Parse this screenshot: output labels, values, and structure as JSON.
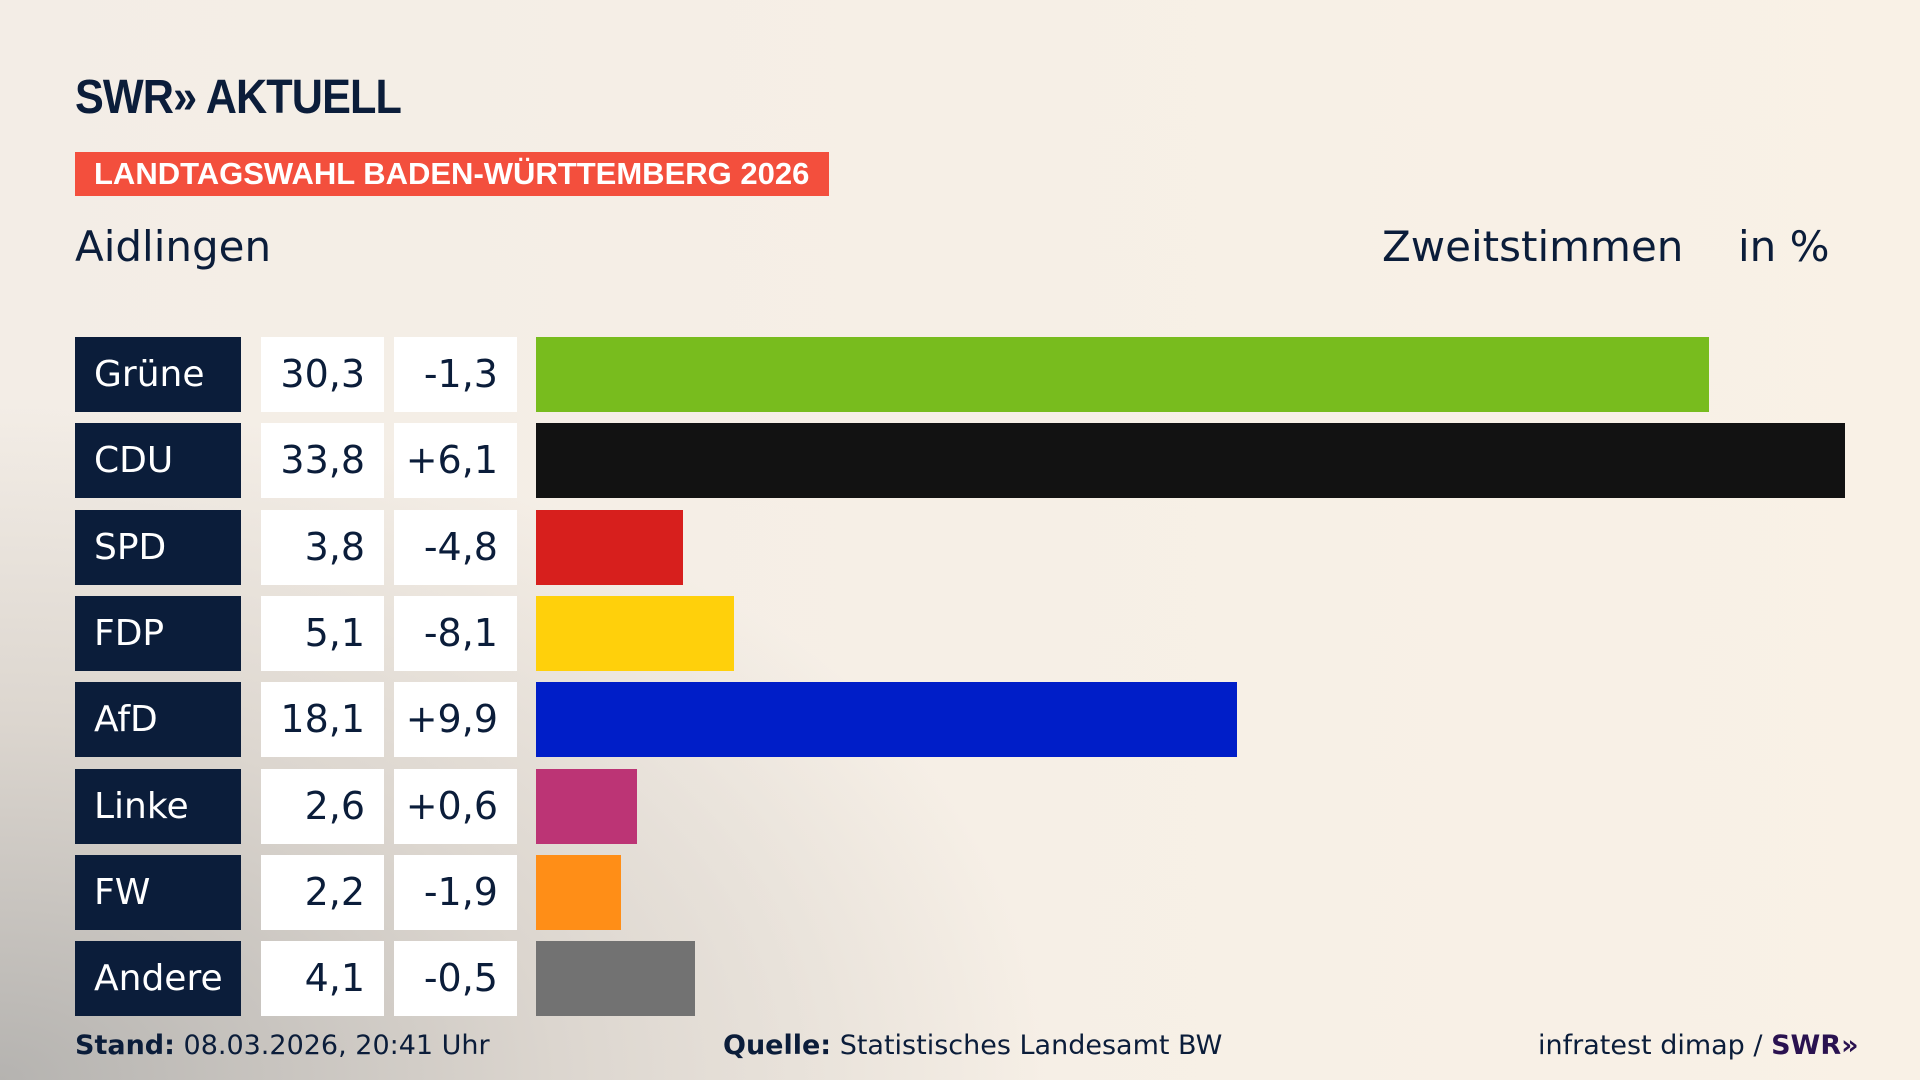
{
  "header": {
    "logo": "SWR» AKTUELL",
    "band": "LANDTAGSWAHL BADEN-WÜRTTEMBERG 2026",
    "place": "Aidlingen",
    "metric": "Zweitstimmen",
    "unit": "in %"
  },
  "chart_data": {
    "type": "bar",
    "orientation": "horizontal",
    "xlim": [
      0,
      33.8
    ],
    "categories": [
      "Grüne",
      "CDU",
      "SPD",
      "FDP",
      "AfD",
      "Linke",
      "FW",
      "Andere"
    ],
    "values": [
      30.3,
      33.8,
      3.8,
      5.1,
      18.1,
      2.6,
      2.2,
      4.1
    ],
    "value_labels": [
      "30,3",
      "33,8",
      "3,8",
      "5,1",
      "18,1",
      "2,6",
      "2,2",
      "4,1"
    ],
    "diff_labels": [
      "-1,3",
      "+6,1",
      "-4,8",
      "-8,1",
      "+9,9",
      "+0,6",
      "-1,9",
      "-0,5"
    ],
    "diffs": [
      -1.3,
      6.1,
      -4.8,
      -8.1,
      9.9,
      0.6,
      -1.9,
      -0.5
    ],
    "colors": [
      "#78bc1e",
      "#121212",
      "#d71f1d",
      "#ffd00b",
      "#001ec8",
      "#bc3475",
      "#ff8e17",
      "#727272"
    ]
  },
  "footer": {
    "stand_label": "Stand:",
    "stand_value": "08.03.2026, 20:41 Uhr",
    "source_label": "Quelle:",
    "source_value": "Statistisches Landesamt BW",
    "credit": "infratest dimap /",
    "credit_logo": "SWR»"
  }
}
